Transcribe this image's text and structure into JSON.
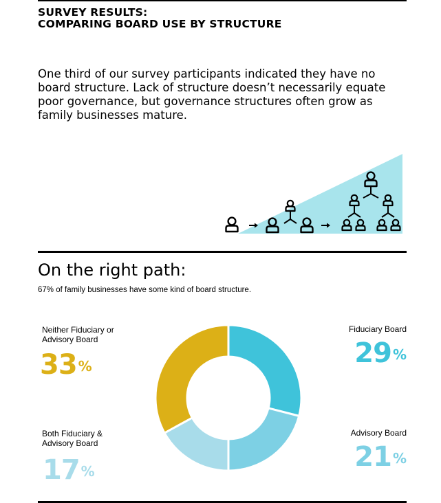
{
  "header": {
    "title_line1": "SURVEY RESULTS:",
    "title_line2": "COMPARING BOARD USE BY STRUCTURE"
  },
  "intro": {
    "text": "One third of our survey participants indicated they have no board structure. Lack of structure doesn’t necessarily equate poor governance, but governance structures often grow as family businesses mature."
  },
  "illustration": {
    "icon": "person-org-chart-icon",
    "fill_color": "#a8e4ec"
  },
  "section": {
    "title": "On the right path:",
    "subtitle": "67% of family businesses have some kind of board structure."
  },
  "colors": {
    "fiduciary": "#3fc3da",
    "advisory": "#7dd0e4",
    "both": "#a8dcea",
    "neither": "#dcb017"
  },
  "chart_data": {
    "type": "pie",
    "donut": true,
    "slices": [
      {
        "label": "Fiduciary Board",
        "value": 29,
        "display": "29",
        "unit": "%"
      },
      {
        "label": "Advisory Board",
        "value": 21,
        "display": "21",
        "unit": "%"
      },
      {
        "label": "Both Fiduciary & Advisory Board",
        "value": 17,
        "display": "17",
        "unit": "%"
      },
      {
        "label": "Neither Fiduciary or Advisory Board",
        "value": 33,
        "display": "33",
        "unit": "%"
      }
    ]
  }
}
